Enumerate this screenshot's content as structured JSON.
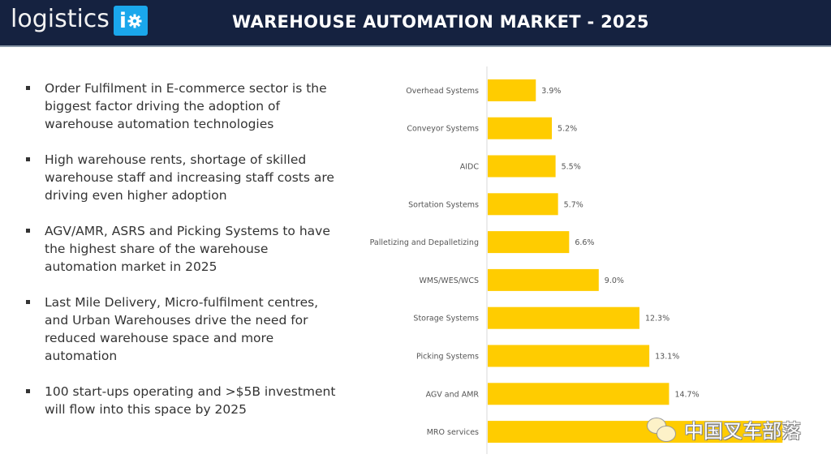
{
  "header": {
    "logo_text": "logistics",
    "logo_badge": "i",
    "logo_badge_color": "#1aa7ec",
    "title": "WAREHOUSE AUTOMATION MARKET - 2025",
    "background": "#152240"
  },
  "bullets": [
    {
      "text": "Order Fulfilment in E-commerce sector is the biggest factor driving the adoption of warehouse automation technologies"
    },
    {
      "text": "High warehouse rents, shortage of skilled warehouse staff and increasing staff costs are driving even higher adoption"
    },
    {
      "text": "AGV/AMR, ASRS and Picking Systems to have the highest share of the warehouse automation market in 2025"
    },
    {
      "text": "Last Mile Delivery, Micro-fulfilment centres, and Urban Warehouses drive the need for reduced warehouse space and more automation"
    },
    {
      "text": "100 start-ups operating and >$5B investment will flow into this space by 2025"
    }
  ],
  "watermark": {
    "text": "中国叉车部落",
    "icon": "wechat-icon"
  },
  "chart_data": {
    "type": "bar",
    "orientation": "horizontal",
    "title": "",
    "xlabel": "",
    "ylabel": "",
    "categories": [
      "Overhead Systems",
      "Conveyor Systems",
      "AIDC",
      "Sortation Systems",
      "Palletizing and Depalletizing",
      "WMS/WES/WCS",
      "Storage Systems",
      "Picking Systems",
      "AGV and AMR",
      "MRO services"
    ],
    "values": [
      3.9,
      5.2,
      5.5,
      5.7,
      6.6,
      9.0,
      12.3,
      13.1,
      14.7,
      23.9
    ],
    "value_labels": [
      "3.9%",
      "5.2%",
      "5.5%",
      "5.7%",
      "6.6%",
      "9.0%",
      "12.3%",
      "13.1%",
      "14.7%",
      ""
    ],
    "unit": "%",
    "xlim": [
      0,
      25
    ],
    "grid": false,
    "legend": "none",
    "bar_color": "#ffcc00"
  }
}
